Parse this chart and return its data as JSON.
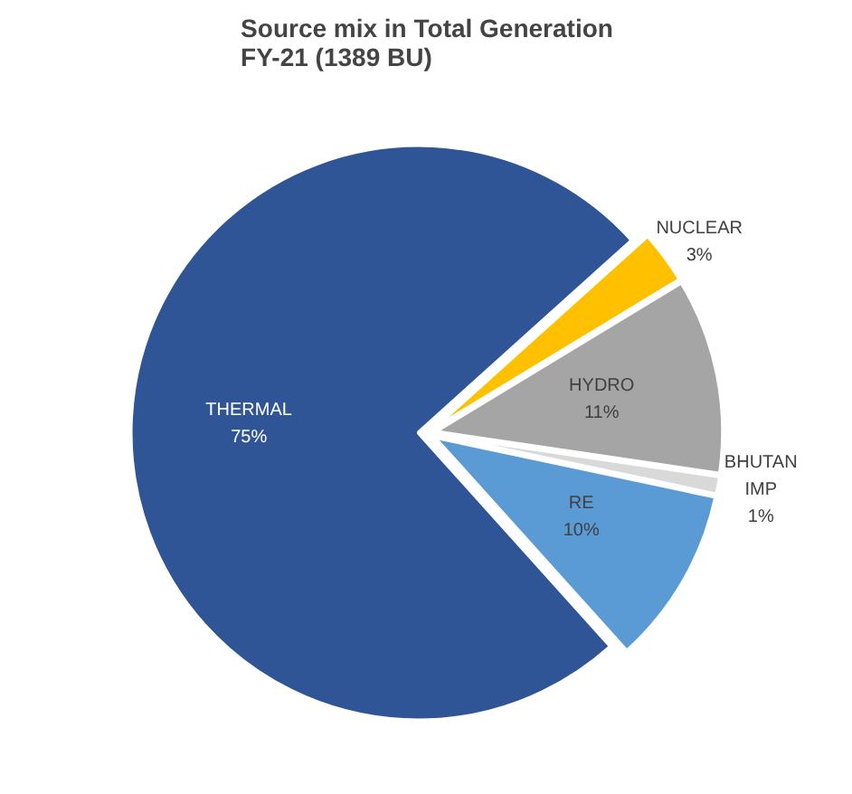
{
  "chart_data": {
    "type": "pie",
    "title": "Source mix in Total Generation\nFY-21 (1389 BU)",
    "categories": [
      "NUCLEAR",
      "HYDRO",
      "BHUTAN IMP",
      "RE",
      "THERMAL"
    ],
    "values": [
      3,
      11,
      1,
      10,
      75
    ],
    "colors": [
      "#ffc000",
      "#a5a5a5",
      "#d9d9d9",
      "#5b9bd5",
      "#2f5597"
    ],
    "value_labels": [
      "3%",
      "11%",
      "1%",
      "10%",
      "75%"
    ]
  }
}
